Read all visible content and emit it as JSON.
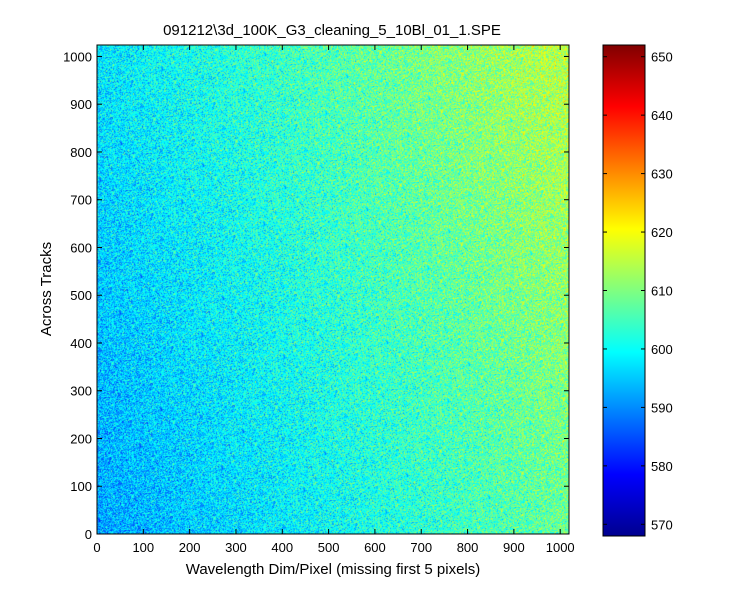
{
  "chart_data": {
    "type": "heatmap",
    "title": "091212\\3d_100K_G3_cleaning_5_10Bl_01_1.SPE",
    "xlabel": "Wavelength Dim/Pixel (missing first 5 pixels)",
    "ylabel": "Across Tracks",
    "xlim": [
      0,
      1019
    ],
    "ylim": [
      0,
      1024
    ],
    "x_ticks": [
      0,
      100,
      200,
      300,
      400,
      500,
      600,
      700,
      800,
      900,
      1000
    ],
    "y_ticks": [
      0,
      100,
      200,
      300,
      400,
      500,
      600,
      700,
      800,
      900,
      1000
    ],
    "colorbar": {
      "clim": [
        568,
        652
      ],
      "ticks": [
        570,
        580,
        590,
        600,
        610,
        620,
        630,
        640,
        650
      ],
      "colormap": "jet"
    },
    "intensity_model": {
      "description_values": "approximate mean counts; noisy speckle field",
      "corner_values": {
        "bottom_left": 592,
        "top_left": 598,
        "bottom_right": 608,
        "top_right": 615
      },
      "noise_amplitude": 5
    },
    "grid": false
  }
}
